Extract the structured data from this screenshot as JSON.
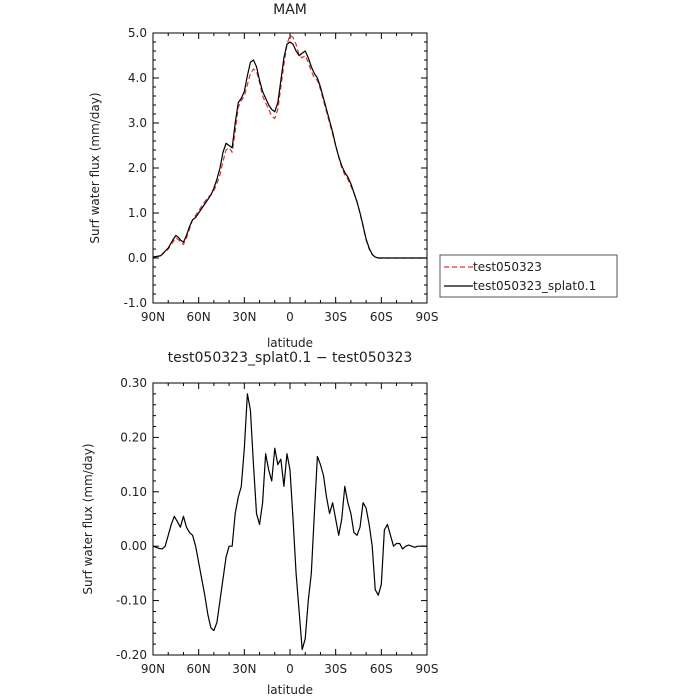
{
  "chart_data": [
    {
      "type": "line",
      "title": "MAM",
      "xlabel": "latitude",
      "ylabel": "Surf water flux (mm/day)",
      "xlim": [
        90,
        -90
      ],
      "ylim": [
        -1.0,
        5.0
      ],
      "x_tick_values": [
        90,
        60,
        30,
        0,
        -30,
        -60,
        -90
      ],
      "x_tick_labels": [
        "90N",
        "60N",
        "30N",
        "0",
        "30S",
        "60S",
        "90S"
      ],
      "y_tick_values": [
        -1.0,
        0.0,
        1.0,
        2.0,
        3.0,
        4.0,
        5.0
      ],
      "y_tick_labels": [
        "-1.0",
        "0.0",
        "1.0",
        "2.0",
        "3.0",
        "4.0",
        "5.0"
      ],
      "legend_position": "right",
      "series": [
        {
          "name": "test050323",
          "color": "#e03030",
          "dash": "dashed",
          "x": [
            90,
            85,
            80,
            77,
            75,
            73,
            72,
            70,
            68,
            66,
            64,
            62,
            60,
            58,
            56,
            54,
            52,
            50,
            48,
            46,
            44,
            42,
            40,
            38,
            36,
            34,
            32,
            30,
            28,
            26,
            24,
            22,
            20,
            18,
            16,
            14,
            12,
            10,
            8,
            6,
            4,
            2,
            0,
            -2,
            -4,
            -6,
            -8,
            -10,
            -12,
            -14,
            -16,
            -18,
            -20,
            -22,
            -24,
            -26,
            -28,
            -30,
            -32,
            -34,
            -36,
            -38,
            -40,
            -42,
            -44,
            -46,
            -48,
            -50,
            -52,
            -54,
            -56,
            -58,
            -60,
            -62,
            -64,
            -66,
            -68,
            -70,
            -72,
            -74,
            -76,
            -78,
            -80,
            -84,
            -88,
            -90
          ],
          "values": [
            0.02,
            0.05,
            0.2,
            0.35,
            0.45,
            0.4,
            0.35,
            0.3,
            0.45,
            0.65,
            0.85,
            0.95,
            1.05,
            1.15,
            1.25,
            1.35,
            1.4,
            1.5,
            1.65,
            1.85,
            2.15,
            2.4,
            2.45,
            2.35,
            2.8,
            3.35,
            3.5,
            3.6,
            3.85,
            4.1,
            4.2,
            4.15,
            3.9,
            3.6,
            3.45,
            3.3,
            3.15,
            3.1,
            3.3,
            3.8,
            4.3,
            4.75,
            4.95,
            4.9,
            4.75,
            4.5,
            4.45,
            4.5,
            4.35,
            4.15,
            4.0,
            3.95,
            3.75,
            3.5,
            3.25,
            3.0,
            2.75,
            2.5,
            2.25,
            2.0,
            1.85,
            1.75,
            1.6,
            1.45,
            1.25,
            1.0,
            0.7,
            0.4,
            0.2,
            0.08,
            0.02,
            0.0,
            0.0,
            0.0,
            0.0,
            0.0,
            0.0,
            0.0,
            0.0,
            0.0,
            0.0,
            0.0,
            0.0,
            0.0,
            0.0,
            0.0
          ]
        },
        {
          "name": "test050323_splat0.1",
          "color": "#000000",
          "dash": "solid",
          "x": [
            90,
            85,
            80,
            77,
            75,
            73,
            72,
            70,
            68,
            66,
            64,
            62,
            60,
            58,
            56,
            54,
            52,
            50,
            48,
            46,
            44,
            42,
            40,
            38,
            36,
            34,
            32,
            30,
            28,
            26,
            24,
            22,
            20,
            18,
            16,
            14,
            12,
            10,
            8,
            6,
            4,
            2,
            0,
            -2,
            -4,
            -6,
            -8,
            -10,
            -12,
            -14,
            -16,
            -18,
            -20,
            -22,
            -24,
            -26,
            -28,
            -30,
            -32,
            -34,
            -36,
            -38,
            -40,
            -42,
            -44,
            -46,
            -48,
            -50,
            -52,
            -54,
            -56,
            -58,
            -60,
            -62,
            -64,
            -66,
            -68,
            -70,
            -72,
            -74,
            -76,
            -78,
            -80,
            -84,
            -88,
            -90
          ],
          "values": [
            0.02,
            0.05,
            0.22,
            0.4,
            0.5,
            0.45,
            0.4,
            0.35,
            0.5,
            0.7,
            0.85,
            0.9,
            1.0,
            1.1,
            1.2,
            1.3,
            1.4,
            1.55,
            1.75,
            2.0,
            2.35,
            2.55,
            2.5,
            2.45,
            3.0,
            3.45,
            3.55,
            3.7,
            4.05,
            4.35,
            4.4,
            4.25,
            3.95,
            3.7,
            3.55,
            3.4,
            3.3,
            3.25,
            3.45,
            3.95,
            4.45,
            4.75,
            4.8,
            4.75,
            4.6,
            4.5,
            4.55,
            4.6,
            4.45,
            4.25,
            4.1,
            4.0,
            3.8,
            3.55,
            3.3,
            3.05,
            2.8,
            2.5,
            2.25,
            2.05,
            1.9,
            1.8,
            1.65,
            1.45,
            1.25,
            1.0,
            0.72,
            0.42,
            0.22,
            0.08,
            0.02,
            0.0,
            0.0,
            0.0,
            0.0,
            0.0,
            0.0,
            0.0,
            0.0,
            0.0,
            0.0,
            0.0,
            0.0,
            0.0,
            0.0,
            0.0
          ]
        }
      ]
    },
    {
      "type": "line",
      "title": "test050323_splat0.1 − test050323",
      "xlabel": "latitude",
      "ylabel": "Surf water flux (mm/day)",
      "xlim": [
        90,
        -90
      ],
      "ylim": [
        -0.2,
        0.3
      ],
      "x_tick_values": [
        90,
        60,
        30,
        0,
        -30,
        -60,
        -90
      ],
      "x_tick_labels": [
        "90N",
        "60N",
        "30N",
        "0",
        "30S",
        "60S",
        "90S"
      ],
      "y_tick_values": [
        -0.2,
        -0.1,
        0.0,
        0.1,
        0.2,
        0.3
      ],
      "y_tick_labels": [
        "-0.20",
        "-0.10",
        "0.00",
        "0.10",
        "0.20",
        "0.30"
      ],
      "series": [
        {
          "color": "#000000",
          "dash": "solid",
          "x": [
            90,
            88,
            86,
            84,
            82,
            80,
            78,
            76,
            74,
            72,
            70,
            68,
            66,
            64,
            62,
            60,
            58,
            56,
            54,
            52,
            50,
            48,
            46,
            44,
            42,
            40,
            38,
            36,
            34,
            32,
            30,
            28,
            26,
            24,
            22,
            20,
            18,
            16,
            14,
            12,
            10,
            8,
            6,
            4,
            2,
            0,
            -2,
            -4,
            -6,
            -8,
            -10,
            -12,
            -14,
            -16,
            -18,
            -20,
            -22,
            -24,
            -26,
            -28,
            -30,
            -32,
            -34,
            -36,
            -38,
            -40,
            -42,
            -44,
            -46,
            -48,
            -50,
            -52,
            -54,
            -56,
            -58,
            -60,
            -62,
            -64,
            -66,
            -68,
            -70,
            -72,
            -74,
            -76,
            -78,
            -80,
            -82,
            -84,
            -86,
            -88,
            -90
          ],
          "values": [
            0.0,
            -0.002,
            -0.004,
            -0.005,
            0.0,
            0.02,
            0.04,
            0.055,
            0.045,
            0.035,
            0.055,
            0.035,
            0.025,
            0.02,
            0.0,
            -0.03,
            -0.06,
            -0.09,
            -0.125,
            -0.15,
            -0.155,
            -0.14,
            -0.1,
            -0.06,
            -0.02,
            0.0,
            0.0,
            0.06,
            0.09,
            0.11,
            0.18,
            0.28,
            0.25,
            0.15,
            0.06,
            0.04,
            0.08,
            0.17,
            0.14,
            0.12,
            0.18,
            0.15,
            0.16,
            0.11,
            0.17,
            0.14,
            0.05,
            -0.05,
            -0.12,
            -0.19,
            -0.17,
            -0.1,
            -0.05,
            0.06,
            0.165,
            0.15,
            0.13,
            0.09,
            0.06,
            0.08,
            0.05,
            0.02,
            0.05,
            0.11,
            0.08,
            0.06,
            0.025,
            0.02,
            0.035,
            0.08,
            0.07,
            0.04,
            0.0,
            -0.08,
            -0.09,
            -0.07,
            0.03,
            0.04,
            0.02,
            0.0,
            0.005,
            0.005,
            -0.005,
            0.0,
            0.002,
            0.0,
            -0.002,
            0.0,
            0.0,
            0.0,
            0.0
          ]
        }
      ]
    }
  ]
}
